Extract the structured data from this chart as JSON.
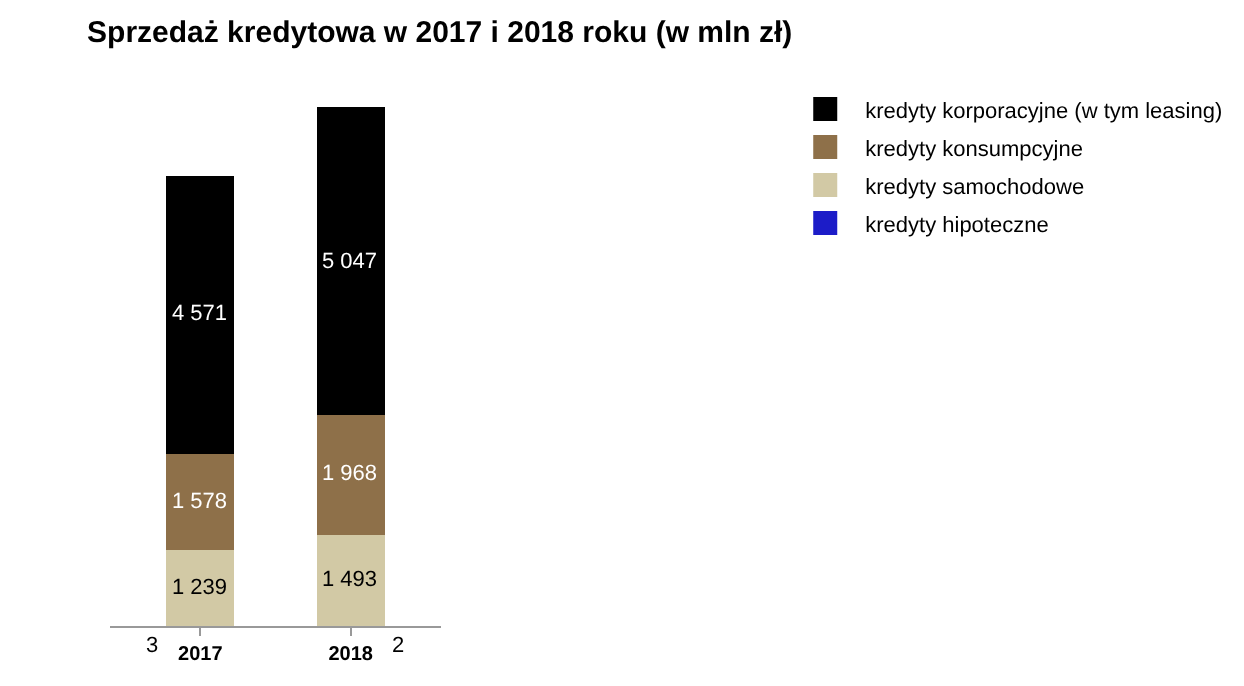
{
  "chart_data": {
    "type": "bar",
    "title": "Sprzedaż kredytowa w 2017 i 2018 roku (w mln zł)",
    "categories": [
      "2017",
      "2018"
    ],
    "stacked": true,
    "legend": "right",
    "series": [
      {
        "name": "kredyty hipoteczne",
        "color": "#1c1cc8",
        "values": [
          3,
          2
        ],
        "value_labels": [
          "3",
          "2"
        ]
      },
      {
        "name": "kredyty samochodowe",
        "color": "#d2c9a5",
        "values": [
          1239,
          1493
        ],
        "value_labels": [
          "1 239",
          "1 493"
        ]
      },
      {
        "name": "kredyty konsumpcyjne",
        "color": "#8e7049",
        "values": [
          1578,
          1968
        ],
        "value_labels": [
          "1 578",
          "1 968"
        ]
      },
      {
        "name": "kredyty korporacyjne (w tym leasing)",
        "color": "#000000",
        "values": [
          4571,
          5047
        ],
        "value_labels": [
          "4 571",
          "5 047"
        ]
      }
    ]
  }
}
